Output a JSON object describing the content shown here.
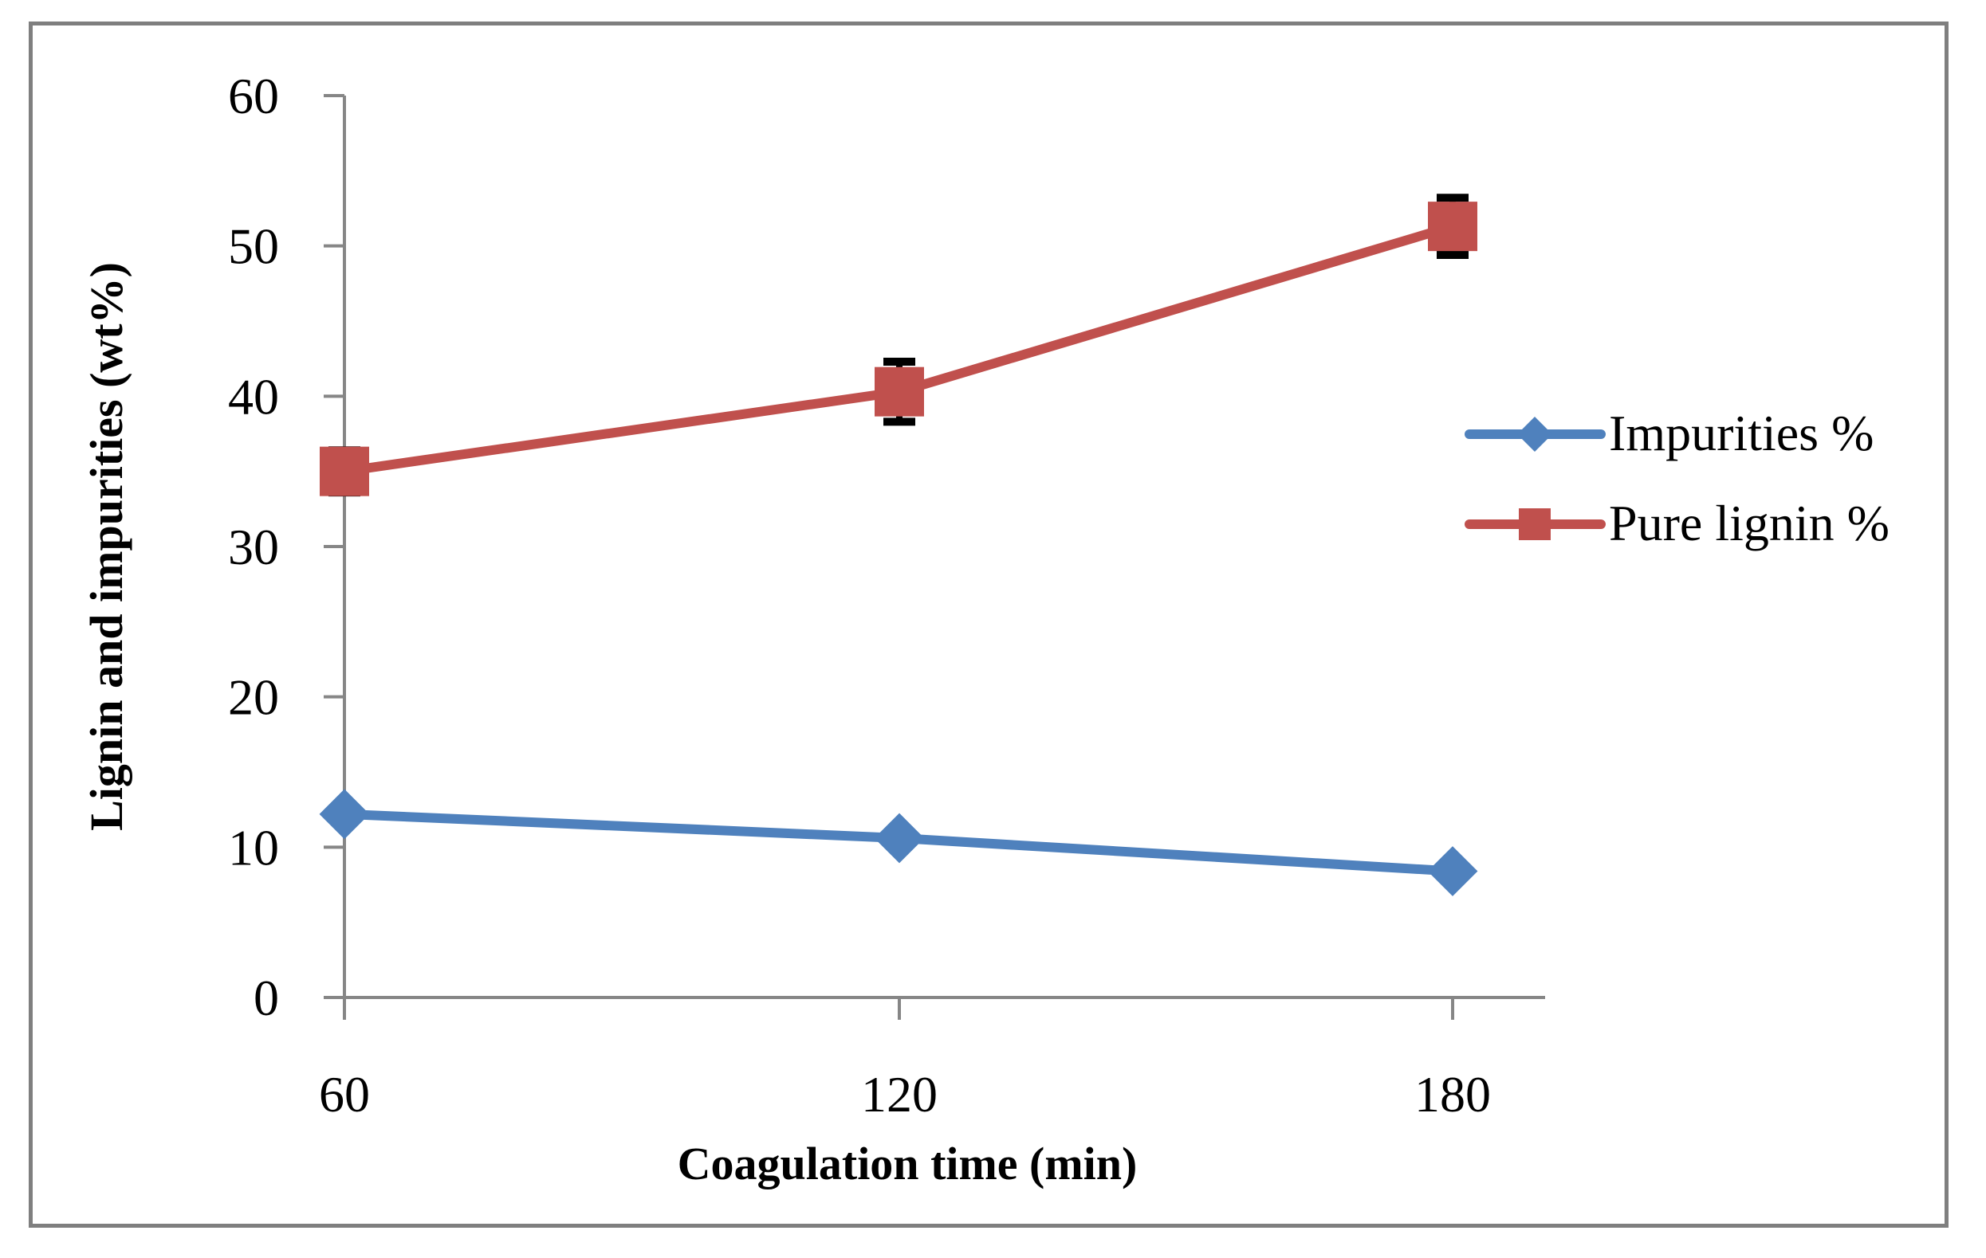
{
  "chart_data": {
    "type": "line",
    "title": "",
    "xlabel": "Coagulation time (min)",
    "ylabel": "Lignin and impurities (wt%)",
    "categories": [
      "60",
      "120",
      "180"
    ],
    "ylim": [
      0,
      60
    ],
    "yticks": [
      "0",
      "10",
      "20",
      "30",
      "40",
      "50",
      "60"
    ],
    "grid": false,
    "legend_position": "right",
    "series": [
      {
        "name": "Impurities %",
        "values": [
          12.2,
          10.6,
          8.4
        ],
        "color": "#4f81bd",
        "marker": "diamond",
        "error": [
          0,
          0,
          0
        ]
      },
      {
        "name": "Pure lignin %",
        "values": [
          35.0,
          40.3,
          51.3
        ],
        "color": "#c0504d",
        "marker": "square",
        "error": [
          1.4,
          2.0,
          1.9
        ]
      }
    ]
  }
}
